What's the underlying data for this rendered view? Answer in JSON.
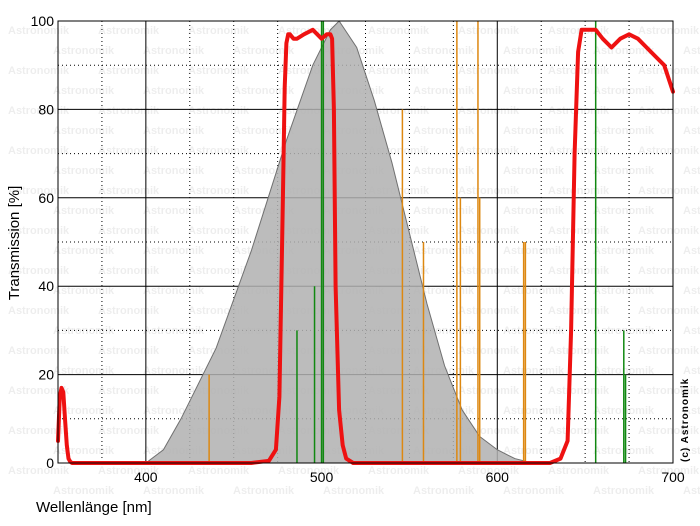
{
  "chart_data": {
    "type": "line",
    "xlabel": "Wellenlänge [nm]",
    "ylabel": "Transmission [%]",
    "xlim": [
      350,
      700
    ],
    "ylim": [
      0,
      100
    ],
    "xticks": [
      400,
      500,
      600,
      700
    ],
    "yticks": [
      0,
      20,
      40,
      60,
      80,
      100
    ],
    "grid": true,
    "watermark": "Astronomik",
    "copyright": "(c) Astronomik",
    "colors": {
      "filter": "#ee1111",
      "sensitivity_fill": "#b0b0b0",
      "sensitivity_edge": "#707070",
      "green_lines": "#118811",
      "orange_lines": "#dd8811"
    },
    "series": [
      {
        "kind": "filter_transmission",
        "x": [
          350,
          351,
          352,
          353,
          354,
          355,
          356,
          357,
          358,
          360,
          365,
          400,
          460,
          470,
          474,
          476,
          478,
          479,
          480,
          481,
          482,
          484,
          486,
          490,
          495,
          500,
          503,
          505,
          506,
          507,
          508,
          510,
          512,
          514,
          518,
          525,
          600,
          630,
          636,
          640,
          642,
          644,
          646,
          648,
          650,
          652,
          656,
          660,
          665,
          670,
          675,
          680,
          685,
          690,
          695,
          700
        ],
        "y": [
          5,
          15,
          17,
          16,
          10,
          4,
          1,
          0.3,
          0,
          0,
          0,
          0,
          0,
          0.5,
          3,
          15,
          60,
          85,
          95,
          97,
          97,
          96,
          96,
          97,
          98,
          96,
          97,
          97,
          96,
          80,
          40,
          12,
          4,
          1,
          0,
          0,
          0,
          0,
          1,
          5,
          30,
          70,
          93,
          98,
          98,
          98,
          98,
          96,
          94,
          96,
          97,
          96,
          94,
          92,
          90,
          84
        ]
      },
      {
        "kind": "sensitivity_curve",
        "x": [
          350,
          400,
          410,
          420,
          440,
          460,
          480,
          495,
          505,
          510,
          520,
          530,
          540,
          550,
          560,
          570,
          580,
          590,
          600,
          610,
          620,
          700
        ],
        "y": [
          0,
          0,
          3,
          10,
          26,
          48,
          73,
          90,
          98,
          100,
          94,
          82,
          68,
          52,
          36,
          22,
          12,
          6,
          3,
          1,
          0,
          0
        ]
      }
    ],
    "emission_lines": [
      {
        "x": 486,
        "y": 30,
        "color": "green"
      },
      {
        "x": 496,
        "y": 40,
        "color": "green"
      },
      {
        "x": 500,
        "y": 100,
        "color": "green"
      },
      {
        "x": 501,
        "y": 100,
        "color": "green"
      },
      {
        "x": 656,
        "y": 100,
        "color": "green"
      },
      {
        "x": 672,
        "y": 30,
        "color": "green"
      },
      {
        "x": 673,
        "y": 20,
        "color": "green"
      },
      {
        "x": 436,
        "y": 20,
        "color": "orange"
      },
      {
        "x": 546,
        "y": 80,
        "color": "orange"
      },
      {
        "x": 558,
        "y": 50,
        "color": "orange"
      },
      {
        "x": 577,
        "y": 100,
        "color": "orange"
      },
      {
        "x": 579,
        "y": 60,
        "color": "orange"
      },
      {
        "x": 589,
        "y": 100,
        "color": "orange"
      },
      {
        "x": 590,
        "y": 60,
        "color": "orange"
      },
      {
        "x": 615,
        "y": 50,
        "color": "orange"
      },
      {
        "x": 616,
        "y": 50,
        "color": "orange"
      }
    ]
  }
}
